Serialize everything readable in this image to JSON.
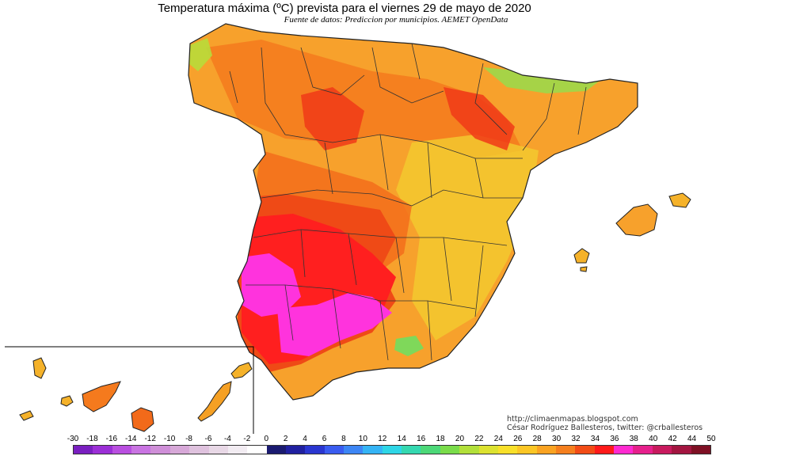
{
  "header": {
    "title": "Temperatura máxima (ºC) prevista para el viernes 29 de mayo de 2020",
    "subtitle": "Fuente de datos: Prediccion por municipios. AEMET OpenData"
  },
  "credits": {
    "website": "http://climaenmapas.blogspot.com",
    "author": "César Rodríguez Ballesteros, twitter: @crballesteros"
  },
  "legend": {
    "labels": [
      "-30",
      "-18",
      "-16",
      "-14",
      "-12",
      "-10",
      "-8",
      "-6",
      "-4",
      "-2",
      "0",
      "2",
      "4",
      "6",
      "8",
      "10",
      "12",
      "14",
      "16",
      "18",
      "20",
      "22",
      "24",
      "26",
      "28",
      "30",
      "32",
      "34",
      "36",
      "38",
      "40",
      "42",
      "44",
      "50"
    ],
    "colors": [
      "#7a1fc0",
      "#9b2fd6",
      "#b94fe0",
      "#c974e2",
      "#cf8fd8",
      "#d7a8d8",
      "#dfc2de",
      "#e8d8e6",
      "#f2ecf2",
      "#ffffff",
      "#1a1a70",
      "#2020a0",
      "#2a36d0",
      "#3a5cf0",
      "#3d86f5",
      "#35b4f5",
      "#2ed6e6",
      "#35d8b0",
      "#4cd878",
      "#7adc4a",
      "#b2e03a",
      "#dce230",
      "#f8e02a",
      "#fbc625",
      "#faa322",
      "#f57f1e",
      "#f24c16",
      "#ff1a1a",
      "#ff2ad0",
      "#e6208c",
      "#c81a5e",
      "#a31540",
      "#7e1024"
    ]
  },
  "map": {
    "regions": [
      "Peninsula",
      "Baleares",
      "Canarias"
    ],
    "palette": {
      "warm": "#f7a12c",
      "hot": "#f57a1d",
      "very_hot": "#ef4a16",
      "extreme": "#ff1f1f",
      "peak": "#ff33dd",
      "cool": "#f2cc2f",
      "mild": "#9cd84a"
    }
  }
}
